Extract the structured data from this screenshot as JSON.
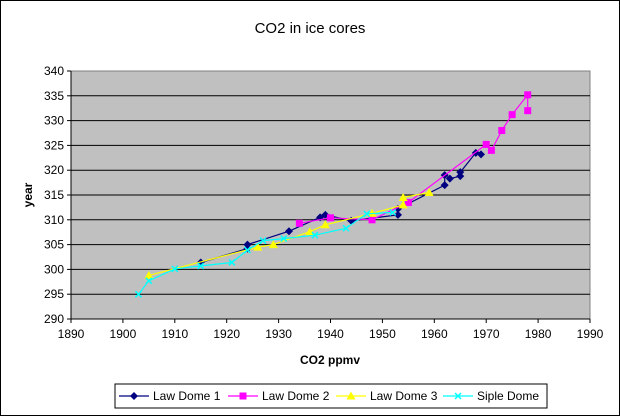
{
  "chart_data": {
    "type": "line",
    "title": "CO2 in ice cores",
    "xlabel": "CO2 ppmv",
    "ylabel": "year",
    "xlim": [
      1890,
      1990
    ],
    "ylim": [
      290,
      340
    ],
    "x_ticks": [
      1890,
      1900,
      1910,
      1920,
      1930,
      1940,
      1950,
      1960,
      1970,
      1980,
      1990
    ],
    "y_ticks": [
      290,
      295,
      300,
      305,
      310,
      315,
      320,
      325,
      330,
      335,
      340
    ],
    "grid": "horizontal",
    "legend_position": "bottom",
    "plot_background": "#c0c0c0",
    "series": [
      {
        "name": "Law Dome 1",
        "color": "#000080",
        "marker": "diamond",
        "points": [
          [
            1915,
            301.4
          ],
          [
            1924,
            304.2
          ],
          [
            1924,
            305.0
          ],
          [
            1932,
            307.7
          ],
          [
            1938,
            310.5
          ],
          [
            1939,
            311.0
          ],
          [
            1944,
            309.8
          ],
          [
            1953,
            311.0
          ],
          [
            1953,
            312.2
          ],
          [
            1962,
            317.0
          ],
          [
            1962,
            319.0
          ],
          [
            1963,
            318.3
          ],
          [
            1965,
            318.8
          ],
          [
            1965,
            319.6
          ],
          [
            1968,
            323.5
          ],
          [
            1969,
            323.2
          ]
        ]
      },
      {
        "name": "Law Dome 2",
        "color": "#ff00ff",
        "marker": "square",
        "points": [
          [
            1934,
            309.3
          ],
          [
            1940,
            310.4
          ],
          [
            1948,
            310.0
          ],
          [
            1955,
            313.5
          ],
          [
            1970,
            325.2
          ],
          [
            1971,
            324.0
          ],
          [
            1973,
            328.0
          ],
          [
            1975,
            331.2
          ],
          [
            1978,
            335.2
          ],
          [
            1978,
            332.0
          ]
        ]
      },
      {
        "name": "Law Dome 3",
        "color": "#ffff00",
        "marker": "triangle",
        "points": [
          [
            1905,
            298.8
          ],
          [
            1926,
            304.5
          ],
          [
            1929,
            305.0
          ],
          [
            1936,
            307.6
          ],
          [
            1939,
            309.0
          ],
          [
            1948,
            311.3
          ],
          [
            1954,
            313.0
          ],
          [
            1954,
            314.5
          ],
          [
            1959,
            315.5
          ]
        ]
      },
      {
        "name": "Siple Dome",
        "color": "#00ffff",
        "marker": "x",
        "points": [
          [
            1903,
            295.0
          ],
          [
            1905,
            297.7
          ],
          [
            1910,
            300.1
          ],
          [
            1915,
            300.7
          ],
          [
            1921,
            301.4
          ],
          [
            1924,
            303.9
          ],
          [
            1927,
            305.8
          ],
          [
            1931,
            306.2
          ],
          [
            1937,
            306.9
          ],
          [
            1943,
            308.3
          ],
          [
            1947,
            311.2
          ],
          [
            1952,
            311.5
          ]
        ]
      }
    ]
  }
}
